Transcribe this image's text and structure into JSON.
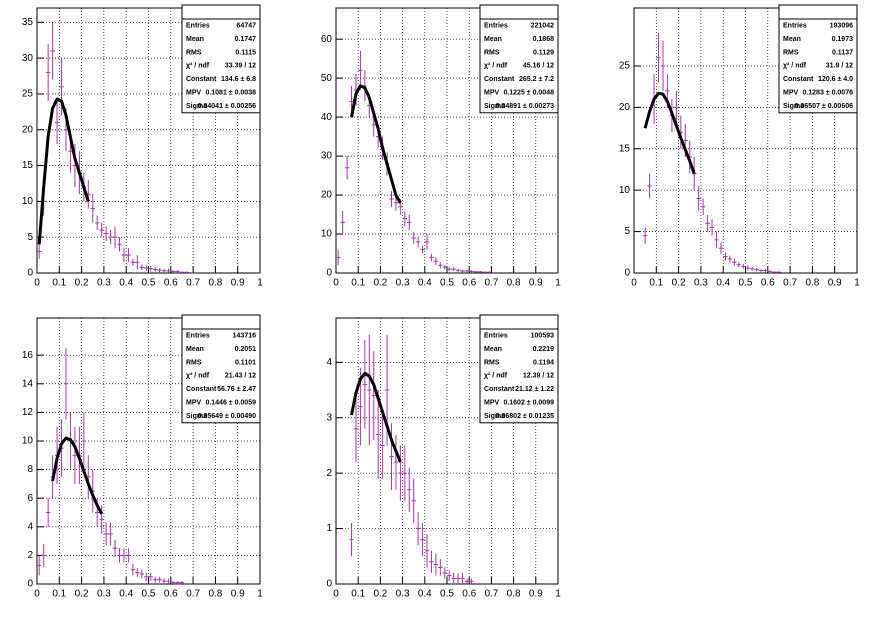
{
  "chart_data": [
    {
      "type": "errorbar",
      "color": "#a03aa8",
      "grid": true,
      "xlim": [
        0,
        1
      ],
      "xticks": [
        0,
        0.1,
        0.2,
        0.3,
        0.4,
        0.5,
        0.6,
        0.7,
        0.8,
        0.9,
        1
      ],
      "ylim": [
        0,
        37
      ],
      "yticks": [
        0,
        5,
        10,
        15,
        20,
        25,
        30,
        35
      ],
      "x": [
        0.01,
        0.03,
        0.05,
        0.07,
        0.09,
        0.11,
        0.13,
        0.15,
        0.17,
        0.19,
        0.21,
        0.23,
        0.25,
        0.27,
        0.29,
        0.31,
        0.33,
        0.35,
        0.37,
        0.39,
        0.41,
        0.43,
        0.45,
        0.47,
        0.49,
        0.51,
        0.53,
        0.55,
        0.57,
        0.59,
        0.61,
        0.63,
        0.65,
        0.67,
        0.69
      ],
      "values": [
        3,
        10,
        28,
        31,
        21,
        26,
        20,
        17,
        15,
        14,
        12,
        11,
        9,
        7,
        6,
        5.5,
        5,
        5,
        4,
        2.5,
        2.5,
        1.5,
        1.5,
        0.8,
        0.7,
        0.6,
        0.5,
        0.4,
        0.3,
        0.3,
        0.2,
        0.2,
        0.1,
        0.1,
        0.05
      ],
      "errors": [
        1,
        2,
        4,
        4,
        3,
        4,
        3,
        3,
        3,
        3,
        2,
        2,
        2,
        1,
        1,
        1,
        1,
        1.5,
        1,
        1,
        1,
        0.5,
        1,
        0.4,
        0.4,
        0.4,
        0.3,
        0.3,
        0.3,
        0.3,
        0.2,
        0.2,
        0.1,
        0.1,
        0.05
      ],
      "fit": {
        "color": "#000000",
        "x": [
          0.01,
          0.03,
          0.05,
          0.07,
          0.09,
          0.11,
          0.13,
          0.15,
          0.17,
          0.19,
          0.21,
          0.23
        ],
        "values": [
          4,
          12,
          19,
          23,
          24.3,
          24,
          22,
          19,
          16,
          14,
          12,
          10
        ]
      },
      "stats": [
        [
          "Entries",
          "64747"
        ],
        [
          "Mean",
          "0.1747"
        ],
        [
          "RMS",
          "0.1115"
        ],
        [
          "χ² / ndf",
          "33.39 / 12"
        ],
        [
          "Constant",
          "134.6 ± 6.8"
        ],
        [
          "MPV",
          "0.1081 ± 0.0038"
        ],
        [
          "Sigma",
          "0.04041 ± 0.00256"
        ]
      ]
    },
    {
      "type": "errorbar",
      "color": "#a03aa8",
      "grid": true,
      "xlim": [
        0,
        1
      ],
      "xticks": [
        0,
        0.1,
        0.2,
        0.3,
        0.4,
        0.5,
        0.6,
        0.7,
        0.8,
        0.9,
        1
      ],
      "ylim": [
        0,
        68
      ],
      "yticks": [
        0,
        10,
        20,
        30,
        40,
        50,
        60
      ],
      "x": [
        0.01,
        0.03,
        0.05,
        0.07,
        0.09,
        0.11,
        0.13,
        0.15,
        0.17,
        0.19,
        0.21,
        0.23,
        0.25,
        0.27,
        0.29,
        0.31,
        0.33,
        0.35,
        0.37,
        0.39,
        0.41,
        0.43,
        0.45,
        0.47,
        0.49,
        0.51,
        0.53,
        0.55,
        0.57,
        0.59,
        0.61,
        0.63,
        0.65,
        0.67,
        0.69
      ],
      "values": [
        4,
        13,
        27,
        44,
        47,
        52,
        48,
        43,
        38,
        35,
        32,
        28,
        19,
        18,
        17,
        14,
        13,
        9,
        8,
        6,
        8,
        4,
        3,
        2,
        1.5,
        1,
        1,
        0.7,
        0.5,
        0.5,
        0.4,
        0.3,
        0.3,
        0.2,
        0.2
      ],
      "errors": [
        2,
        3,
        3,
        4,
        4,
        5,
        4,
        3,
        3,
        3,
        3,
        3,
        2,
        2,
        2,
        2,
        2,
        1.5,
        1.5,
        1,
        2,
        1,
        1,
        0.8,
        0.6,
        0.5,
        0.5,
        0.4,
        0.3,
        0.3,
        0.3,
        0.2,
        0.2,
        0.2,
        0.2
      ],
      "fit": {
        "color": "#000000",
        "x": [
          0.07,
          0.09,
          0.11,
          0.13,
          0.15,
          0.17,
          0.19,
          0.21,
          0.23,
          0.25,
          0.27,
          0.29
        ],
        "values": [
          40,
          46,
          48,
          47.5,
          45,
          41,
          37,
          32,
          28,
          24,
          20,
          18
        ]
      },
      "stats": [
        [
          "Entries",
          "221042"
        ],
        [
          "Mean",
          "0.1868"
        ],
        [
          "RMS",
          "0.1129"
        ],
        [
          "χ² / ndf",
          "45.16 / 12"
        ],
        [
          "Constant",
          "265.2 ± 7.2"
        ],
        [
          "MPV",
          "0.1225 ± 0.0048"
        ],
        [
          "Sigma",
          "0.04891 ± 0.00273"
        ]
      ]
    },
    {
      "type": "errorbar",
      "color": "#a03aa8",
      "grid": true,
      "xlim": [
        0,
        1
      ],
      "xticks": [
        0,
        0.1,
        0.2,
        0.3,
        0.4,
        0.5,
        0.6,
        0.7,
        0.8,
        0.9,
        1
      ],
      "ylim": [
        0,
        32
      ],
      "yticks": [
        0,
        5,
        10,
        15,
        20,
        25
      ],
      "x": [
        0.05,
        0.07,
        0.09,
        0.11,
        0.13,
        0.15,
        0.17,
        0.19,
        0.21,
        0.23,
        0.25,
        0.27,
        0.29,
        0.31,
        0.33,
        0.35,
        0.37,
        0.39,
        0.41,
        0.43,
        0.45,
        0.47,
        0.49,
        0.51,
        0.53,
        0.55,
        0.57,
        0.59,
        0.61,
        0.63,
        0.65
      ],
      "values": [
        4.5,
        10.5,
        21,
        26,
        25,
        22,
        19,
        20,
        17,
        16,
        14,
        12,
        9,
        8,
        6,
        5.5,
        4,
        3,
        2,
        1.7,
        1.3,
        1,
        0.8,
        0.6,
        0.5,
        0.4,
        0.3,
        0.3,
        0.2,
        0.1,
        0.1
      ],
      "errors": [
        1,
        1.5,
        3,
        3,
        3,
        2,
        2,
        2,
        2,
        2,
        2,
        2,
        1.5,
        1,
        1,
        1,
        1,
        0.7,
        0.5,
        0.4,
        0.4,
        0.3,
        0.3,
        0.3,
        0.2,
        0.2,
        0.2,
        0.2,
        0.1,
        0.1,
        0.1
      ],
      "fit": {
        "color": "#000000",
        "x": [
          0.05,
          0.07,
          0.09,
          0.11,
          0.13,
          0.15,
          0.17,
          0.19,
          0.21,
          0.23,
          0.25,
          0.27
        ],
        "values": [
          17.5,
          19.5,
          21,
          21.7,
          21.6,
          20.7,
          19.3,
          17.8,
          16.3,
          14.9,
          13.5,
          12
        ]
      },
      "stats": [
        [
          "Entries",
          "193096"
        ],
        [
          "Mean",
          "0.1973"
        ],
        [
          "RMS",
          "0.1137"
        ],
        [
          "χ² / ndf",
          "31.9 / 12"
        ],
        [
          "Constant",
          "120.6 ± 4.0"
        ],
        [
          "MPV",
          "0.1283 ± 0.0076"
        ],
        [
          "Sigma",
          "0.06507 ± 0.00606"
        ]
      ]
    },
    {
      "type": "errorbar",
      "color": "#a03aa8",
      "grid": true,
      "xlim": [
        0,
        1
      ],
      "xticks": [
        0,
        0.1,
        0.2,
        0.3,
        0.4,
        0.5,
        0.6,
        0.7,
        0.8,
        0.9,
        1
      ],
      "ylim": [
        0,
        18.6
      ],
      "yticks": [
        0,
        2,
        4,
        6,
        8,
        10,
        12,
        14,
        16
      ],
      "x": [
        0.01,
        0.03,
        0.05,
        0.07,
        0.09,
        0.11,
        0.13,
        0.15,
        0.17,
        0.19,
        0.21,
        0.23,
        0.25,
        0.27,
        0.29,
        0.31,
        0.33,
        0.35,
        0.37,
        0.39,
        0.41,
        0.43,
        0.45,
        0.47,
        0.49,
        0.51,
        0.53,
        0.55,
        0.57,
        0.59,
        0.61,
        0.63,
        0.65
      ],
      "values": [
        1.3,
        2,
        5,
        7.5,
        9,
        9.5,
        14,
        10,
        9,
        9,
        10,
        7.5,
        6.5,
        5,
        4.5,
        3.5,
        3.5,
        2.5,
        2,
        2,
        2,
        1,
        0.8,
        0.7,
        0.5,
        0.5,
        0.3,
        0.3,
        0.2,
        0.2,
        0.1,
        0.1,
        0.1
      ],
      "errors": [
        0.7,
        0.8,
        1,
        1.5,
        2,
        2,
        2.5,
        2,
        2,
        2,
        2,
        1.5,
        1.5,
        1,
        1,
        0.8,
        0.8,
        0.6,
        0.5,
        0.5,
        0.5,
        0.4,
        0.3,
        0.3,
        0.3,
        0.3,
        0.2,
        0.2,
        0.2,
        0.2,
        0.1,
        0.1,
        0.1
      ],
      "fit": {
        "color": "#000000",
        "x": [
          0.07,
          0.09,
          0.11,
          0.13,
          0.15,
          0.17,
          0.19,
          0.21,
          0.23,
          0.25,
          0.27,
          0.29
        ],
        "values": [
          7.2,
          8.8,
          9.8,
          10.2,
          10.1,
          9.6,
          8.8,
          7.9,
          7,
          6.2,
          5.5,
          4.9
        ]
      },
      "stats": [
        [
          "Entries",
          "143716"
        ],
        [
          "Mean",
          "0.2051"
        ],
        [
          "RMS",
          "0.1101"
        ],
        [
          "χ² / ndf",
          "21.43 / 12"
        ],
        [
          "Constant",
          "56.76 ± 2.47"
        ],
        [
          "MPV",
          "0.1446 ± 0.0059"
        ],
        [
          "Sigma",
          "0.05649 ± 0.00490"
        ]
      ]
    },
    {
      "type": "errorbar",
      "color": "#a03aa8",
      "grid": true,
      "xlim": [
        0,
        1
      ],
      "xticks": [
        0,
        0.1,
        0.2,
        0.3,
        0.4,
        0.5,
        0.6,
        0.7,
        0.8,
        0.9,
        1
      ],
      "ylim": [
        0,
        4.8
      ],
      "yticks": [
        0,
        1,
        2,
        3,
        4
      ],
      "x": [
        0.07,
        0.09,
        0.11,
        0.13,
        0.15,
        0.17,
        0.19,
        0.21,
        0.23,
        0.25,
        0.27,
        0.29,
        0.31,
        0.33,
        0.35,
        0.37,
        0.39,
        0.41,
        0.43,
        0.45,
        0.47,
        0.49,
        0.51,
        0.53,
        0.55,
        0.57,
        0.59,
        0.61
      ],
      "values": [
        0.8,
        2.8,
        3.2,
        3.6,
        3.5,
        3.4,
        2.7,
        2.5,
        3.5,
        2.3,
        2.2,
        2,
        2,
        1.7,
        1.5,
        1,
        0.8,
        0.6,
        0.4,
        0.35,
        0.3,
        0.2,
        0.15,
        0.1,
        0.1,
        0.1,
        0.05,
        0.05
      ],
      "errors": [
        0.3,
        0.6,
        0.7,
        0.8,
        1,
        0.8,
        0.8,
        0.6,
        1,
        0.6,
        0.5,
        0.5,
        0.5,
        0.4,
        0.4,
        0.3,
        0.3,
        0.3,
        0.2,
        0.2,
        0.15,
        0.1,
        0.1,
        0.1,
        0.1,
        0.1,
        0.05,
        0.05
      ],
      "fit": {
        "color": "#000000",
        "x": [
          0.07,
          0.09,
          0.11,
          0.13,
          0.15,
          0.17,
          0.19,
          0.21,
          0.23,
          0.25,
          0.27,
          0.29
        ],
        "values": [
          3.05,
          3.45,
          3.7,
          3.8,
          3.75,
          3.6,
          3.35,
          3.1,
          2.85,
          2.6,
          2.4,
          2.2
        ]
      },
      "stats": [
        [
          "Entries",
          "100593"
        ],
        [
          "Mean",
          "0.2219"
        ],
        [
          "RMS",
          "0.1194"
        ],
        [
          "χ² / ndf",
          "12.39 / 12"
        ],
        [
          "Constant",
          "21.12 ± 1.22"
        ],
        [
          "MPV",
          "0.1602 ± 0.0099"
        ],
        [
          "Sigma",
          "0.06802 ± 0.01235"
        ]
      ]
    }
  ]
}
